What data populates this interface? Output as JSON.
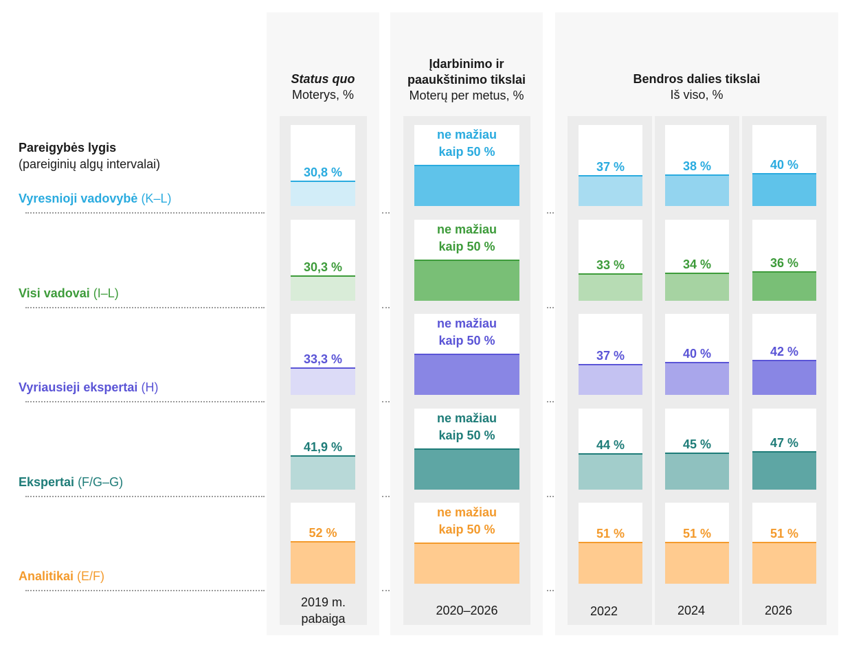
{
  "headers": {
    "status_quo": {
      "title": "Status quo",
      "sub": "Moterys, %"
    },
    "targets": {
      "title": "Įdarbinimo ir paaukštinimo tikslai",
      "sub": "Moterų per metus, %"
    },
    "share": {
      "title": "Bendros dalies tikslai",
      "sub": "Iš viso, %"
    }
  },
  "left_header": {
    "title": "Pareigybės lygis",
    "sub": "(pareiginių algų intervalai)"
  },
  "footers": {
    "status_quo": "2019 m.\npabaiga",
    "targets": "2020–2026",
    "y2022": "2022",
    "y2024": "2024",
    "y2026": "2026"
  },
  "rows": [
    {
      "name": "Vyresnioji vadovybė",
      "range": "(K–L)",
      "color": "#2aabdf",
      "light": "#d2edf8",
      "mid": "#a8dcf1",
      "mid2": "#93d4ef",
      "dark": "#5fc3ea",
      "sq_label": "30,8 %",
      "sq_value": 30.8,
      "target_label": "ne mažiau\nkaip  50 %",
      "y2022_label": "37 %",
      "y2022": 37,
      "y2024_label": "38 %",
      "y2024": 38,
      "y2026_label": "40 %",
      "y2026": 40
    },
    {
      "name": "Visi vadovai",
      "range": "(I–L)",
      "color": "#3d9b3a",
      "light": "#d9ecd8",
      "mid": "#b7dcb4",
      "mid2": "#a6d3a2",
      "dark": "#79bf76",
      "sq_label": "30,3 %",
      "sq_value": 30.3,
      "target_label": "ne mažiau\nkaip  50 %",
      "y2022_label": "33 %",
      "y2022": 33,
      "y2024_label": "34 %",
      "y2024": 34,
      "y2026_label": "36 %",
      "y2026": 36
    },
    {
      "name": "Vyriausieji ekspertai",
      "range": "(H)",
      "color": "#5a54d6",
      "light": "#dcdbf7",
      "mid": "#c4c2f2",
      "mid2": "#a9a6eb",
      "dark": "#8986e4",
      "sq_label": "33,3 %",
      "sq_value": 33.3,
      "target_label": "ne mažiau\nkaip 50 %",
      "y2022_label": "37 %",
      "y2022": 37,
      "y2024_label": "40 %",
      "y2024": 40,
      "y2026_label": "42 %",
      "y2026": 42
    },
    {
      "name": "Ekspertai",
      "range": "(F/G–G)",
      "color": "#1e7c78",
      "light": "#b8d9d8",
      "mid": "#a2cdcb",
      "mid2": "#8fc1bf",
      "dark": "#5ea6a4",
      "sq_label": "41,9 %",
      "sq_value": 41.9,
      "target_label": "ne mažiau\nkaip 50 %",
      "y2022_label": "44 %",
      "y2022": 44,
      "y2024_label": "45 %",
      "y2024": 45,
      "y2026_label": "47 %",
      "y2026": 47
    },
    {
      "name": "Analitikai",
      "range": "(E/F)",
      "color": "#f39a2c",
      "light": "#ffcb8f",
      "mid": "#ffcb8f",
      "mid2": "#ffcb8f",
      "dark": "#ffcb8f",
      "sq_label": "52 %",
      "sq_value": 52,
      "target_label": "ne mažiau\nkaip 50 %",
      "y2022_label": "51 %",
      "y2022": 51,
      "y2024_label": "51 %",
      "y2024": 51,
      "y2026_label": "51 %",
      "y2026": 51
    }
  ],
  "chart_data": {
    "type": "table",
    "columns": [
      "Status quo 2019 m. pabaiga",
      "Įdarbinimo ir paaukštinimo tikslai 2020–2026",
      "2022",
      "2024",
      "2026"
    ],
    "rows": [
      {
        "level": "Vyresnioji vadovybė (K–L)",
        "status_quo": 30.8,
        "target_min": 50,
        "y2022": 37,
        "y2024": 38,
        "y2026": 40
      },
      {
        "level": "Visi vadovai (I–L)",
        "status_quo": 30.3,
        "target_min": 50,
        "y2022": 33,
        "y2024": 34,
        "y2026": 36
      },
      {
        "level": "Vyriausieji ekspertai (H)",
        "status_quo": 33.3,
        "target_min": 50,
        "y2022": 37,
        "y2024": 40,
        "y2026": 42
      },
      {
        "level": "Ekspertai (F/G–G)",
        "status_quo": 41.9,
        "target_min": 50,
        "y2022": 44,
        "y2024": 45,
        "y2026": 47
      },
      {
        "level": "Analitikai (E/F)",
        "status_quo": 52,
        "target_min": 50,
        "y2022": 51,
        "y2024": 51,
        "y2026": 51
      }
    ],
    "unit": "%",
    "ylim": [
      0,
      100
    ]
  }
}
